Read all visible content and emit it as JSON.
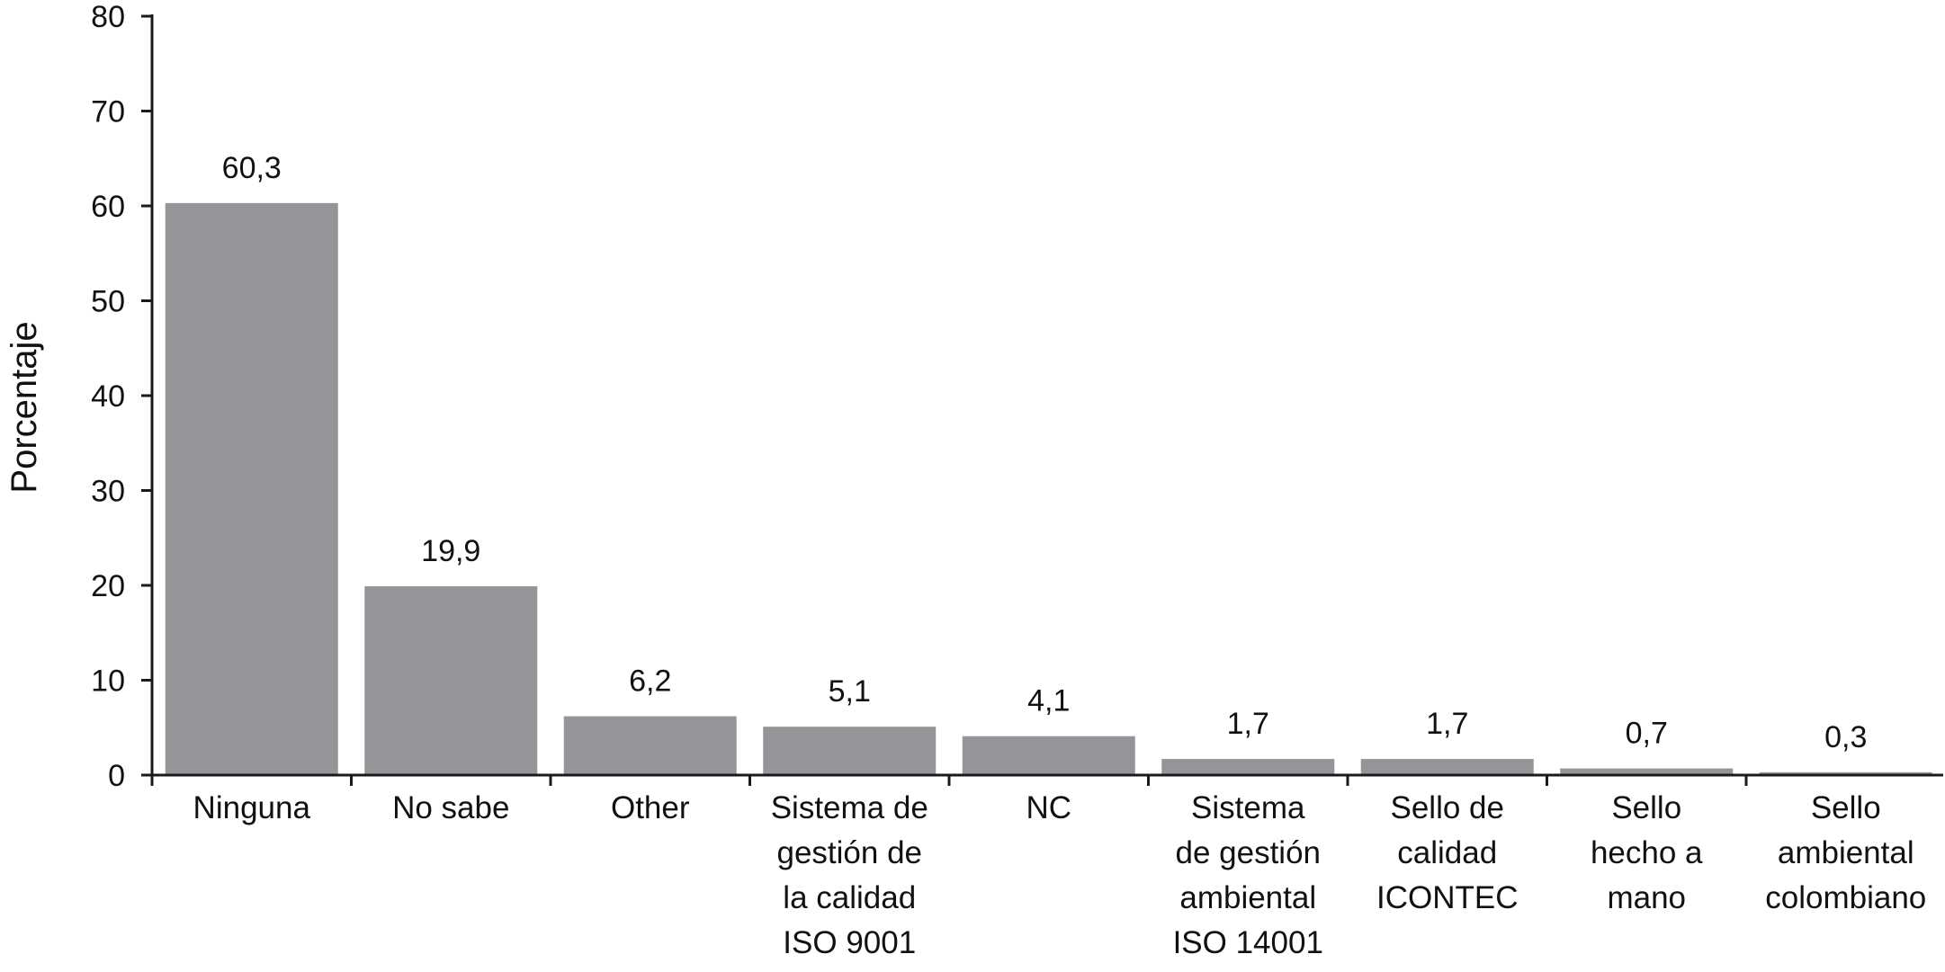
{
  "chart_data": {
    "type": "bar",
    "title": "",
    "xlabel": "",
    "ylabel": "Porcentaje",
    "ylim": [
      0,
      80
    ],
    "yticks": [
      0,
      10,
      20,
      30,
      40,
      50,
      60,
      70,
      80
    ],
    "grid": false,
    "categories": [
      [
        "Ninguna"
      ],
      [
        "No sabe"
      ],
      [
        "Other"
      ],
      [
        "Sistema de",
        "gestión de",
        "la calidad",
        "ISO 9001"
      ],
      [
        "NC"
      ],
      [
        "Sistema",
        "de gestión",
        "ambiental",
        "ISO 14001"
      ],
      [
        "Sello de",
        "calidad",
        "ICONTEC"
      ],
      [
        "Sello",
        "hecho a",
        "mano"
      ],
      [
        "Sello",
        "ambiental",
        "colombiano"
      ]
    ],
    "values": [
      60.3,
      19.9,
      6.2,
      5.1,
      4.1,
      1.7,
      1.7,
      0.7,
      0.3
    ],
    "value_labels": [
      "60,3",
      "19,9",
      "6,2",
      "5,1",
      "4,1",
      "1,7",
      "1,7",
      "0,7",
      "0,3"
    ],
    "bar_color": "#939598",
    "axis_color": "#1a1a1a"
  }
}
